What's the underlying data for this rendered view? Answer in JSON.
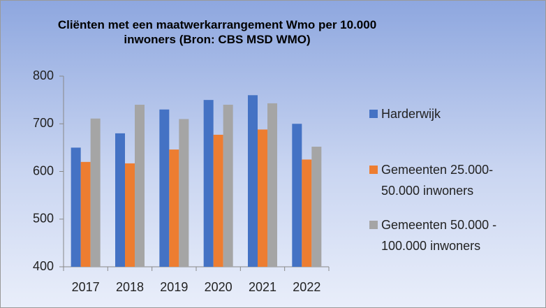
{
  "chart_data": {
    "type": "bar",
    "title": "Cliënten met een maatwerkarrangement Wmo per 10.000 inwoners (Bron: CBS MSD WMO)",
    "categories": [
      "2017",
      "2018",
      "2019",
      "2020",
      "2021",
      "2022"
    ],
    "series": [
      {
        "name": "Harderwijk",
        "color": "#4472c4",
        "values": [
          650,
          680,
          730,
          750,
          760,
          700
        ]
      },
      {
        "name": "Gemeenten 25.000-50.000 inwoners",
        "color": "#ed7d31",
        "values": [
          620,
          617,
          646,
          677,
          688,
          625
        ]
      },
      {
        "name": "Gemeenten 50.000 - 100.000 inwoners",
        "color": "#a5a5a5",
        "values": [
          711,
          740,
          710,
          740,
          743,
          652
        ]
      }
    ],
    "ylim": [
      400,
      800
    ],
    "yticks": [
      400,
      500,
      600,
      700,
      800
    ],
    "grid": false,
    "legend": "right"
  }
}
